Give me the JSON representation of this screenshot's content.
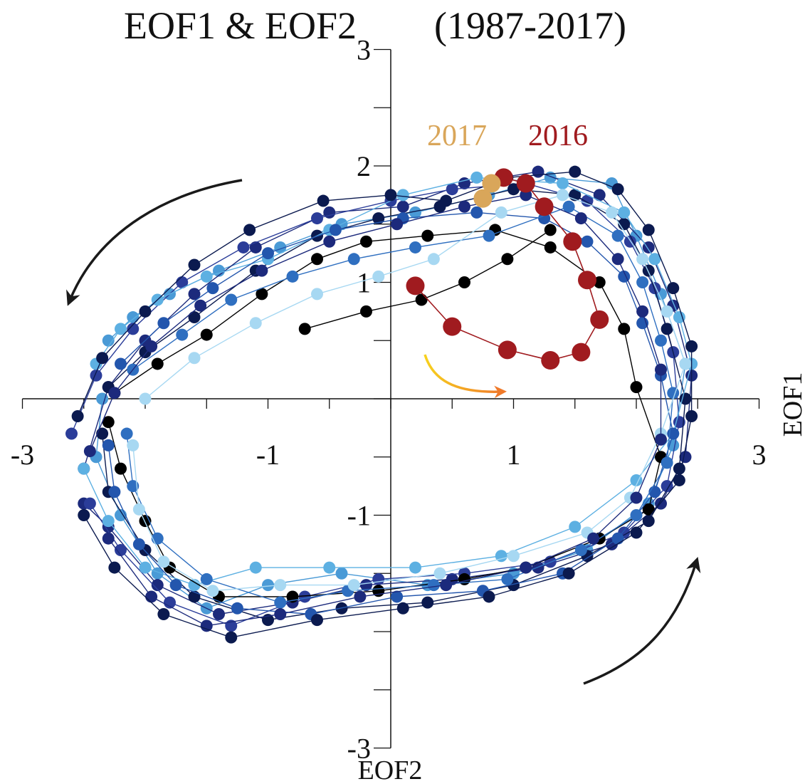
{
  "chart_data": {
    "type": "scatter",
    "title": "EOF1 & EOF2",
    "title_period": "(1987-2017)",
    "xlabel": "EOF1",
    "ylabel": "EOF2",
    "xlim": [
      -3,
      3
    ],
    "ylim": [
      -3,
      3
    ],
    "xticks": [
      -3,
      -1,
      1,
      3
    ],
    "yticks": [
      -3,
      -1,
      1,
      2,
      3
    ],
    "grid": false,
    "palette": [
      "#000000",
      "#0b1a4f",
      "#1c2a7c",
      "#2b3d99",
      "#2356ad",
      "#2f6fc0",
      "#4a9ad6",
      "#5db0e2",
      "#a7d8f2"
    ],
    "annotations": [
      {
        "text": "2017",
        "color": "#d9a65a"
      },
      {
        "text": "2016",
        "color": "#a01b1f"
      }
    ],
    "series": [
      {
        "color": "#4a9ad6",
        "points": [
          [
            -2.3,
            0.5
          ],
          [
            -2.1,
            0.7
          ],
          [
            -1.8,
            0.9
          ],
          [
            -1.4,
            1.1
          ],
          [
            -0.9,
            1.3
          ],
          [
            -0.4,
            1.5
          ],
          [
            0.2,
            1.6
          ],
          [
            0.8,
            1.75
          ],
          [
            1.3,
            1.9
          ],
          [
            1.8,
            1.85
          ],
          [
            2.0,
            1.4
          ],
          [
            2.2,
            0.9
          ],
          [
            2.4,
            0.3
          ],
          [
            2.3,
            -0.4
          ],
          [
            2.1,
            -0.9
          ],
          [
            1.6,
            -1.3
          ],
          [
            1.0,
            -1.5
          ],
          [
            0.3,
            -1.6
          ],
          [
            -0.4,
            -1.5
          ],
          [
            -1.0,
            -1.6
          ],
          [
            -1.5,
            -1.8
          ],
          [
            -1.9,
            -1.5
          ],
          [
            -2.2,
            -1.0
          ],
          [
            -2.4,
            -0.5
          ],
          [
            -2.35,
            0.0
          ]
        ]
      },
      {
        "color": "#1c2a7c",
        "points": [
          [
            -2.5,
            -0.6
          ],
          [
            -2.3,
            0.1
          ],
          [
            -2.0,
            0.5
          ],
          [
            -1.6,
            0.9
          ],
          [
            -1.1,
            1.3
          ],
          [
            -0.5,
            1.6
          ],
          [
            0.1,
            1.65
          ],
          [
            0.6,
            1.85
          ],
          [
            1.2,
            1.95
          ],
          [
            1.7,
            1.75
          ],
          [
            2.1,
            1.3
          ],
          [
            2.3,
            0.8
          ],
          [
            2.45,
            0.2
          ],
          [
            2.4,
            -0.5
          ],
          [
            2.2,
            -0.9
          ],
          [
            1.8,
            -1.25
          ],
          [
            1.2,
            -1.45
          ],
          [
            0.5,
            -1.55
          ],
          [
            -0.2,
            -1.6
          ],
          [
            -0.8,
            -1.75
          ],
          [
            -1.4,
            -1.85
          ],
          [
            -1.9,
            -1.6
          ],
          [
            -2.3,
            -1.1
          ],
          [
            -2.5,
            -0.9
          ]
        ]
      },
      {
        "color": "#2b3d99",
        "points": [
          [
            -2.6,
            -0.3
          ],
          [
            -2.4,
            0.2
          ],
          [
            -2.1,
            0.6
          ],
          [
            -1.7,
            1.0
          ],
          [
            -1.2,
            1.3
          ],
          [
            -0.6,
            1.55
          ],
          [
            0.0,
            1.7
          ],
          [
            0.5,
            1.8
          ],
          [
            1.1,
            1.85
          ],
          [
            1.6,
            1.7
          ],
          [
            1.95,
            1.35
          ],
          [
            2.15,
            0.95
          ],
          [
            2.3,
            0.4
          ],
          [
            2.35,
            -0.2
          ],
          [
            2.25,
            -0.75
          ],
          [
            1.9,
            -1.15
          ],
          [
            1.3,
            -1.4
          ],
          [
            0.6,
            -1.5
          ],
          [
            -0.1,
            -1.55
          ],
          [
            -0.7,
            -1.7
          ],
          [
            -1.3,
            -1.95
          ],
          [
            -1.8,
            -1.75
          ],
          [
            -2.2,
            -1.3
          ],
          [
            -2.45,
            -0.9
          ]
        ]
      },
      {
        "color": "#0b1a4f",
        "points": [
          [
            -2.3,
            0.1
          ],
          [
            -2.0,
            0.4
          ],
          [
            -1.6,
            0.7
          ],
          [
            -1.1,
            1.1
          ],
          [
            -0.6,
            1.4
          ],
          [
            -0.1,
            1.55
          ],
          [
            0.4,
            1.65
          ],
          [
            1.0,
            1.8
          ],
          [
            1.5,
            1.75
          ],
          [
            1.9,
            1.5
          ],
          [
            2.1,
            1.1
          ],
          [
            2.25,
            0.6
          ],
          [
            2.4,
            0.0
          ],
          [
            2.35,
            -0.6
          ],
          [
            2.1,
            -1.05
          ],
          [
            1.6,
            -1.35
          ],
          [
            1.0,
            -1.6
          ],
          [
            0.3,
            -1.75
          ],
          [
            -0.4,
            -1.8
          ],
          [
            -1.0,
            -1.9
          ],
          [
            -1.6,
            -1.7
          ],
          [
            -2.0,
            -1.3
          ],
          [
            -2.3,
            -0.8
          ],
          [
            -2.35,
            -0.3
          ]
        ]
      },
      {
        "color": "#5db0e2",
        "points": [
          [
            -2.4,
            0.3
          ],
          [
            -2.2,
            0.6
          ],
          [
            -1.9,
            0.85
          ],
          [
            -1.5,
            1.05
          ],
          [
            -1.0,
            1.2
          ],
          [
            -0.5,
            1.45
          ],
          [
            0.1,
            1.75
          ],
          [
            0.7,
            1.9
          ],
          [
            1.4,
            1.85
          ],
          [
            1.9,
            1.6
          ],
          [
            2.15,
            1.2
          ],
          [
            2.35,
            0.7
          ],
          [
            2.45,
            0.3
          ],
          [
            2.3,
            -0.3
          ],
          [
            2.0,
            -0.7
          ],
          [
            1.5,
            -1.1
          ],
          [
            0.9,
            -1.35
          ],
          [
            0.2,
            -1.45
          ],
          [
            -0.5,
            -1.45
          ],
          [
            -1.1,
            -1.45
          ],
          [
            -1.6,
            -1.6
          ],
          [
            -2.0,
            -1.45
          ],
          [
            -2.3,
            -1.05
          ],
          [
            -2.5,
            -0.6
          ]
        ]
      },
      {
        "color": "#000000",
        "points": [
          [
            -2.25,
            0.05
          ],
          [
            -1.9,
            0.3
          ],
          [
            -1.5,
            0.55
          ],
          [
            -1.05,
            0.9
          ],
          [
            -0.6,
            1.2
          ],
          [
            -0.2,
            1.35
          ],
          [
            0.3,
            1.4
          ],
          [
            0.85,
            1.45
          ],
          [
            1.3,
            1.3
          ],
          [
            1.7,
            1.0
          ],
          [
            1.9,
            0.6
          ],
          [
            2.0,
            0.1
          ],
          [
            2.2,
            -0.5
          ],
          [
            2.1,
            -0.95
          ],
          [
            1.7,
            -1.2
          ],
          [
            1.1,
            -1.45
          ],
          [
            0.6,
            -1.55
          ],
          [
            -0.1,
            -1.65
          ],
          [
            -0.8,
            -1.7
          ],
          [
            -1.4,
            -1.7
          ],
          [
            -1.8,
            -1.45
          ],
          [
            -2.0,
            -1.05
          ],
          [
            -2.2,
            -0.6
          ],
          [
            -2.3,
            -0.2
          ]
        ]
      },
      {
        "color": "#2356ad",
        "points": [
          [
            -2.2,
            0.3
          ],
          [
            -1.85,
            0.65
          ],
          [
            -1.45,
            0.95
          ],
          [
            -1.0,
            1.25
          ],
          [
            -0.45,
            1.45
          ],
          [
            0.1,
            1.55
          ],
          [
            0.7,
            1.6
          ],
          [
            1.25,
            1.55
          ],
          [
            1.6,
            1.35
          ],
          [
            1.9,
            1.05
          ],
          [
            2.05,
            0.65
          ],
          [
            2.2,
            0.2
          ],
          [
            2.3,
            -0.3
          ],
          [
            2.15,
            -0.8
          ],
          [
            1.85,
            -1.2
          ],
          [
            1.4,
            -1.5
          ],
          [
            0.75,
            -1.65
          ],
          [
            0.05,
            -1.7
          ],
          [
            -0.65,
            -1.85
          ],
          [
            -1.25,
            -1.8
          ],
          [
            -1.75,
            -1.6
          ],
          [
            -2.05,
            -1.25
          ],
          [
            -2.25,
            -0.8
          ],
          [
            -2.3,
            -0.4
          ]
        ]
      },
      {
        "color": "#2f6fc0",
        "points": [
          [
            -2.1,
            0.25
          ],
          [
            -1.7,
            0.55
          ],
          [
            -1.3,
            0.85
          ],
          [
            -0.8,
            1.05
          ],
          [
            -0.3,
            1.2
          ],
          [
            0.2,
            1.3
          ],
          [
            0.8,
            1.4
          ],
          [
            1.45,
            1.65
          ],
          [
            1.85,
            1.4
          ],
          [
            2.05,
            1.0
          ],
          [
            2.2,
            0.5
          ],
          [
            2.3,
            0.05
          ],
          [
            2.25,
            -0.55
          ],
          [
            2.0,
            -1.0
          ],
          [
            1.55,
            -1.3
          ],
          [
            0.95,
            -1.55
          ],
          [
            0.35,
            -1.6
          ],
          [
            -0.35,
            -1.65
          ],
          [
            -0.9,
            -1.75
          ],
          [
            -1.5,
            -1.55
          ],
          [
            -1.9,
            -1.2
          ],
          [
            -2.1,
            -0.75
          ],
          [
            -2.15,
            -0.3
          ]
        ]
      },
      {
        "color": "#a7d8f2",
        "points": [
          [
            -2.0,
            0.0
          ],
          [
            -1.6,
            0.35
          ],
          [
            -1.1,
            0.65
          ],
          [
            -0.6,
            0.9
          ],
          [
            -0.1,
            1.05
          ],
          [
            0.35,
            1.2
          ],
          [
            0.9,
            1.6
          ],
          [
            1.4,
            1.75
          ],
          [
            1.8,
            1.6
          ],
          [
            2.05,
            1.2
          ],
          [
            2.25,
            0.75
          ],
          [
            2.4,
            0.3
          ],
          [
            2.2,
            -0.3
          ],
          [
            1.95,
            -0.85
          ],
          [
            1.6,
            -1.15
          ],
          [
            1.0,
            -1.35
          ],
          [
            0.4,
            -1.5
          ],
          [
            -0.3,
            -1.6
          ],
          [
            -0.9,
            -1.6
          ],
          [
            -1.45,
            -1.65
          ],
          [
            -1.85,
            -1.4
          ],
          [
            -2.05,
            -0.95
          ],
          [
            -2.1,
            -0.4
          ]
        ]
      },
      {
        "color": "#1c2a7c",
        "points": [
          [
            -2.45,
            -0.45
          ],
          [
            -2.25,
            0.05
          ],
          [
            -1.95,
            0.45
          ],
          [
            -1.55,
            0.8
          ],
          [
            -1.05,
            1.1
          ],
          [
            -0.5,
            1.35
          ],
          [
            0.05,
            1.5
          ],
          [
            0.6,
            1.65
          ],
          [
            1.1,
            1.75
          ],
          [
            1.55,
            1.55
          ],
          [
            1.85,
            1.2
          ],
          [
            2.05,
            0.75
          ],
          [
            2.2,
            0.25
          ],
          [
            2.2,
            -0.35
          ],
          [
            2.0,
            -0.85
          ],
          [
            1.65,
            -1.2
          ],
          [
            1.1,
            -1.45
          ],
          [
            0.45,
            -1.6
          ],
          [
            -0.25,
            -1.7
          ],
          [
            -0.9,
            -1.85
          ],
          [
            -1.5,
            -1.95
          ],
          [
            -1.95,
            -1.7
          ],
          [
            -2.3,
            -1.2
          ]
        ]
      },
      {
        "color": "#0b1a4f",
        "points": [
          [
            -2.55,
            -0.15
          ],
          [
            -2.35,
            0.35
          ],
          [
            -2.0,
            0.75
          ],
          [
            -1.6,
            1.15
          ],
          [
            -1.15,
            1.45
          ],
          [
            -0.55,
            1.7
          ],
          [
            0.0,
            1.75
          ],
          [
            0.45,
            1.7
          ],
          [
            0.95,
            1.9
          ],
          [
            1.5,
            1.95
          ],
          [
            1.85,
            1.8
          ],
          [
            2.1,
            1.45
          ],
          [
            2.3,
            0.95
          ],
          [
            2.45,
            0.45
          ],
          [
            2.45,
            -0.15
          ],
          [
            2.35,
            -0.7
          ],
          [
            2.0,
            -1.15
          ],
          [
            1.45,
            -1.5
          ],
          [
            0.8,
            -1.7
          ],
          [
            0.1,
            -1.8
          ],
          [
            -0.6,
            -1.9
          ],
          [
            -1.3,
            -2.05
          ],
          [
            -1.85,
            -1.85
          ],
          [
            -2.25,
            -1.45
          ],
          [
            -2.5,
            -1.0
          ]
        ]
      },
      {
        "color": "#000000",
        "points": [
          [
            -0.7,
            0.6
          ],
          [
            -0.2,
            0.75
          ],
          [
            0.25,
            0.85
          ],
          [
            0.6,
            1.0
          ],
          [
            0.95,
            1.2
          ],
          [
            1.3,
            1.45
          ]
        ]
      }
    ],
    "highlight_2017": {
      "color": "#d9a65a",
      "points": [
        [
          0.75,
          1.72
        ],
        [
          0.82,
          1.85
        ]
      ]
    },
    "highlight_2016": {
      "color": "#a01b1f",
      "points": [
        [
          0.92,
          1.9
        ],
        [
          1.1,
          1.85
        ],
        [
          1.25,
          1.65
        ],
        [
          1.48,
          1.35
        ],
        [
          1.6,
          1.02
        ],
        [
          1.7,
          0.68
        ],
        [
          1.55,
          0.4
        ],
        [
          1.3,
          0.33
        ],
        [
          0.95,
          0.42
        ],
        [
          0.5,
          0.62
        ],
        [
          0.2,
          0.97
        ]
      ]
    }
  }
}
